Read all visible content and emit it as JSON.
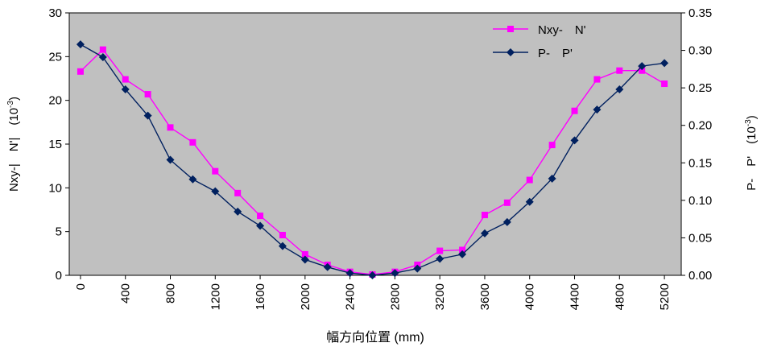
{
  "chart_data": {
    "type": "line",
    "xlabel": "幅方向位置 (mm)",
    "ylabel_left": "Nxy-|　N'|　(10-3)",
    "ylabel_left_parts": {
      "main": "Nxy-|　N'|　(10",
      "exp": "-3",
      "close": ")"
    },
    "ylabel_right": "P-　P'　(10-3)",
    "ylabel_right_parts": {
      "main": "P-　P'　(10",
      "exp": "-3",
      "close": ")"
    },
    "x_ticks": [
      0,
      400,
      800,
      1200,
      1600,
      2000,
      2400,
      2800,
      3200,
      3600,
      4000,
      4400,
      4800,
      5200
    ],
    "x_tick_labels": [
      "0",
      "400",
      "800",
      "1200",
      "1600",
      "2000",
      "2400",
      "2800",
      "3200",
      "3600",
      "4000",
      "4400",
      "4800",
      "5200"
    ],
    "xlim": [
      -100,
      5350
    ],
    "ylim_left": [
      0,
      30
    ],
    "y_ticks_left": [
      0,
      5,
      10,
      15,
      20,
      25,
      30
    ],
    "y_tick_labels_left": [
      "0",
      "5",
      "10",
      "15",
      "20",
      "25",
      "30"
    ],
    "ylim_right": [
      0,
      0.35
    ],
    "y_ticks_right": [
      0,
      0.05,
      0.1,
      0.15,
      0.2,
      0.25,
      0.3,
      0.35
    ],
    "y_tick_labels_right": [
      "0.00",
      "0.05",
      "0.10",
      "0.15",
      "0.20",
      "0.25",
      "0.30",
      "0.35"
    ],
    "plot_background": "#c0c0c0",
    "legend_position": "top-right",
    "series": [
      {
        "name": "Nxy-　N'",
        "axis": "left",
        "color": "#ff00ff",
        "marker": "square",
        "x": [
          0,
          200,
          400,
          600,
          800,
          1000,
          1200,
          1400,
          1600,
          1800,
          2000,
          2200,
          2400,
          2600,
          2800,
          3000,
          3200,
          3400,
          3600,
          3800,
          4000,
          4200,
          4400,
          4600,
          4800,
          5000,
          5200
        ],
        "values": [
          23.3,
          25.8,
          22.4,
          20.7,
          16.9,
          15.2,
          11.9,
          9.4,
          6.8,
          4.6,
          2.4,
          1.2,
          0.4,
          0.1,
          0.4,
          1.2,
          2.8,
          2.9,
          6.9,
          8.3,
          10.9,
          14.9,
          18.8,
          22.4,
          23.4,
          23.4,
          21.9
        ]
      },
      {
        "name": "P-　P'",
        "axis": "right",
        "color": "#00205f",
        "marker": "diamond",
        "x": [
          0,
          200,
          400,
          600,
          800,
          1000,
          1200,
          1400,
          1600,
          1800,
          2000,
          2200,
          2400,
          2600,
          2800,
          3000,
          3200,
          3400,
          3600,
          3800,
          4000,
          4200,
          4400,
          4600,
          4800,
          5000,
          5200
        ],
        "values": [
          0.308,
          0.291,
          0.248,
          0.213,
          0.154,
          0.128,
          0.112,
          0.085,
          0.066,
          0.039,
          0.021,
          0.011,
          0.003,
          0.0,
          0.003,
          0.009,
          0.022,
          0.028,
          0.056,
          0.071,
          0.098,
          0.129,
          0.18,
          0.221,
          0.248,
          0.279,
          0.283
        ]
      }
    ]
  }
}
